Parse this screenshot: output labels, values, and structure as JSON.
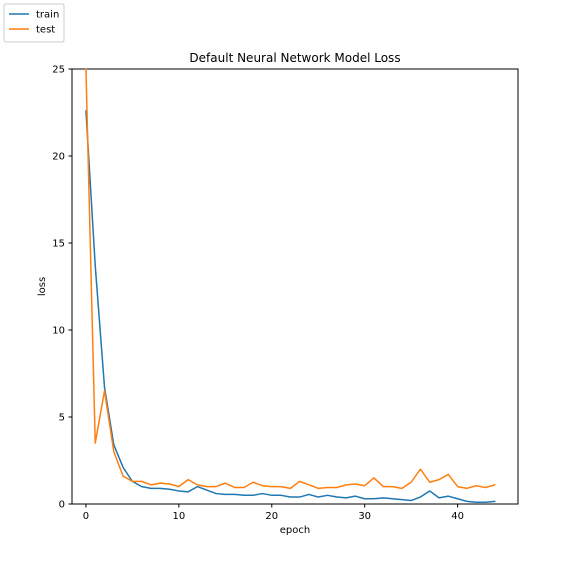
{
  "chart_data": {
    "type": "line",
    "title": "Default Neural Network Model Loss",
    "xlabel": "epoch",
    "ylabel": "loss",
    "xlim": [
      -1.5,
      46.5
    ],
    "ylim": [
      0,
      25
    ],
    "xticks": [
      0,
      10,
      20,
      30,
      40
    ],
    "yticks": [
      0,
      5,
      10,
      15,
      20,
      25
    ],
    "grid": false,
    "legend_position": "outside top-left",
    "series": [
      {
        "name": "train",
        "color": "#1f77b4",
        "values": [
          22.6,
          13.7,
          6.7,
          3.4,
          2.1,
          1.3,
          1.0,
          0.9,
          0.9,
          0.85,
          0.75,
          0.7,
          1.0,
          0.8,
          0.6,
          0.55,
          0.55,
          0.5,
          0.5,
          0.6,
          0.5,
          0.5,
          0.4,
          0.4,
          0.55,
          0.4,
          0.5,
          0.4,
          0.35,
          0.45,
          0.3,
          0.3,
          0.35,
          0.3,
          0.25,
          0.2,
          0.4,
          0.75,
          0.35,
          0.45,
          0.3,
          0.15,
          0.1,
          0.1,
          0.15
        ]
      },
      {
        "name": "test",
        "color": "#ff7f0e",
        "values": [
          25.0,
          3.5,
          6.5,
          3.0,
          1.6,
          1.3,
          1.3,
          1.1,
          1.2,
          1.15,
          1.0,
          1.4,
          1.1,
          1.0,
          1.0,
          1.2,
          0.95,
          0.95,
          1.25,
          1.05,
          1.0,
          1.0,
          0.9,
          1.3,
          1.1,
          0.9,
          0.95,
          0.95,
          1.1,
          1.15,
          1.05,
          1.5,
          1.0,
          1.0,
          0.9,
          1.25,
          2.0,
          1.25,
          1.4,
          1.7,
          1.0,
          0.9,
          1.05,
          0.95,
          1.1
        ]
      }
    ]
  }
}
